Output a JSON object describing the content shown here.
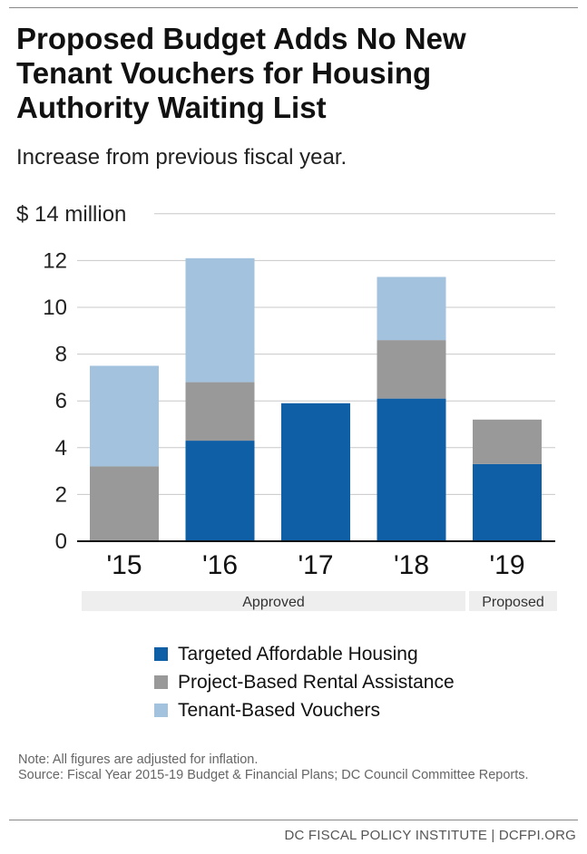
{
  "title": "Proposed Budget Adds No New Tenant Vouchers for Housing Authority Waiting List",
  "subtitle": "Increase from previous fiscal year.",
  "chart_data": {
    "type": "bar",
    "stacked": true,
    "categories": [
      "'15",
      "'16",
      "'17",
      "'18",
      "'19"
    ],
    "series": [
      {
        "name": "Targeted Affordable Housing",
        "color": "#0f5fa6",
        "values": [
          0,
          4.3,
          5.9,
          6.1,
          3.3
        ]
      },
      {
        "name": "Project-Based Rental Assistance",
        "color": "#999999",
        "values": [
          3.2,
          2.5,
          0,
          2.5,
          1.9
        ]
      },
      {
        "name": "Tenant-Based Vouchers",
        "color": "#a3c2dd",
        "values": [
          4.3,
          5.3,
          0,
          2.7,
          0
        ]
      }
    ],
    "ylim": [
      0,
      14
    ],
    "yticks": [
      0,
      2,
      4,
      6,
      8,
      10,
      12,
      14
    ],
    "ytick_top_label": "$ 14 million",
    "grid": true,
    "category_groups": [
      {
        "label": "Approved",
        "categories": [
          "'15",
          "'16",
          "'17",
          "'18"
        ]
      },
      {
        "label": "Proposed",
        "categories": [
          "'19"
        ]
      }
    ],
    "legend_position": "bottom"
  },
  "note": "Note: All figures are adjusted for inflation.",
  "source": "Source: Fiscal Year 2015-19 Budget & Financial Plans; DC Council Committee Reports.",
  "footer": "DC FISCAL POLICY INSTITUTE | DCFPI.ORG"
}
